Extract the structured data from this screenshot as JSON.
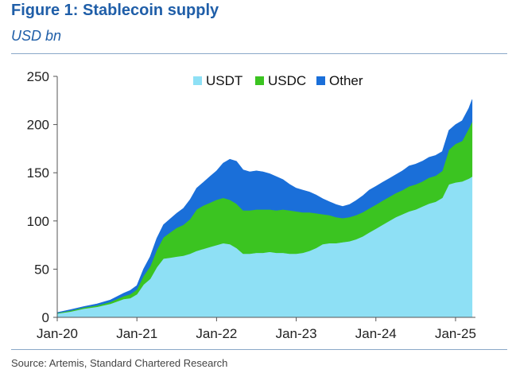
{
  "figure": {
    "title": "Figure 1: Stablecoin supply",
    "subtitle": "USD bn",
    "source": "Source: Artemis, Standard Chartered Research"
  },
  "chart_data": {
    "type": "area",
    "stacked": true,
    "x_unit": "months since Jan-20",
    "x": [
      0,
      2,
      4,
      6,
      8,
      10,
      11,
      12,
      13,
      14,
      15,
      16,
      17,
      18,
      19,
      20,
      21,
      22,
      23,
      24,
      25,
      26,
      27,
      28,
      29,
      30,
      31,
      32,
      33,
      34,
      35,
      36,
      37,
      38,
      39,
      40,
      41,
      42,
      43,
      44,
      45,
      46,
      47,
      48,
      49,
      50,
      51,
      52,
      53,
      54,
      55,
      56,
      57,
      58,
      59,
      60,
      61,
      62,
      62.5
    ],
    "xlim": [
      0,
      63
    ],
    "x_ticks": [
      0,
      12,
      24,
      36,
      48,
      60
    ],
    "x_tick_labels": [
      "Jan-20",
      "Jan-21",
      "Jan-22",
      "Jan-23",
      "Jan-24",
      "Jan-25"
    ],
    "ylim": [
      0,
      250
    ],
    "y_ticks": [
      0,
      50,
      100,
      150,
      200,
      250
    ],
    "y_tick_labels": [
      "0",
      "50",
      "100",
      "150",
      "200",
      "250"
    ],
    "grid": false,
    "legend_position": "top-center",
    "series": [
      {
        "name": "USDT",
        "color": "#8ee0f5",
        "values": [
          4,
          6,
          9,
          11,
          14,
          19,
          20,
          24,
          34,
          40,
          52,
          61,
          62,
          63,
          64,
          66,
          69,
          71,
          73,
          75,
          77,
          76,
          72,
          66,
          66,
          67,
          67,
          68,
          67,
          67,
          66,
          66,
          67,
          69,
          72,
          76,
          77,
          77,
          78,
          79,
          81,
          84,
          88,
          92,
          96,
          100,
          104,
          107,
          110,
          112,
          115,
          118,
          120,
          124,
          138,
          140,
          141,
          144,
          146
        ]
      },
      {
        "name": "USDC",
        "color": "#3bc421",
        "values": [
          0.5,
          1,
          1.2,
          1.5,
          2,
          3,
          4,
          5,
          9,
          13,
          18,
          22,
          26,
          30,
          32,
          36,
          43,
          45,
          46,
          47,
          47,
          46,
          46,
          45,
          45,
          45,
          45,
          44,
          44,
          45,
          45,
          44,
          42,
          40,
          36,
          31,
          29,
          27,
          25,
          25,
          25,
          25,
          25,
          25,
          25,
          25,
          25,
          25,
          26,
          26,
          26,
          27,
          27,
          28,
          36,
          40,
          42,
          52,
          57
        ]
      },
      {
        "name": "Other",
        "color": "#1a6fd9",
        "values": [
          0.5,
          1,
          1,
          1.5,
          2,
          3,
          4,
          4,
          7,
          10,
          12,
          13,
          14,
          15,
          17,
          20,
          22,
          24,
          27,
          30,
          36,
          42,
          44,
          42,
          40,
          40,
          39,
          37,
          35,
          31,
          27,
          24,
          23,
          21,
          19,
          16,
          14,
          13,
          12,
          13,
          15,
          17,
          19,
          19,
          19,
          19,
          19,
          20,
          21,
          21,
          21,
          21,
          21,
          20,
          20,
          20,
          21,
          21,
          23
        ]
      }
    ]
  }
}
